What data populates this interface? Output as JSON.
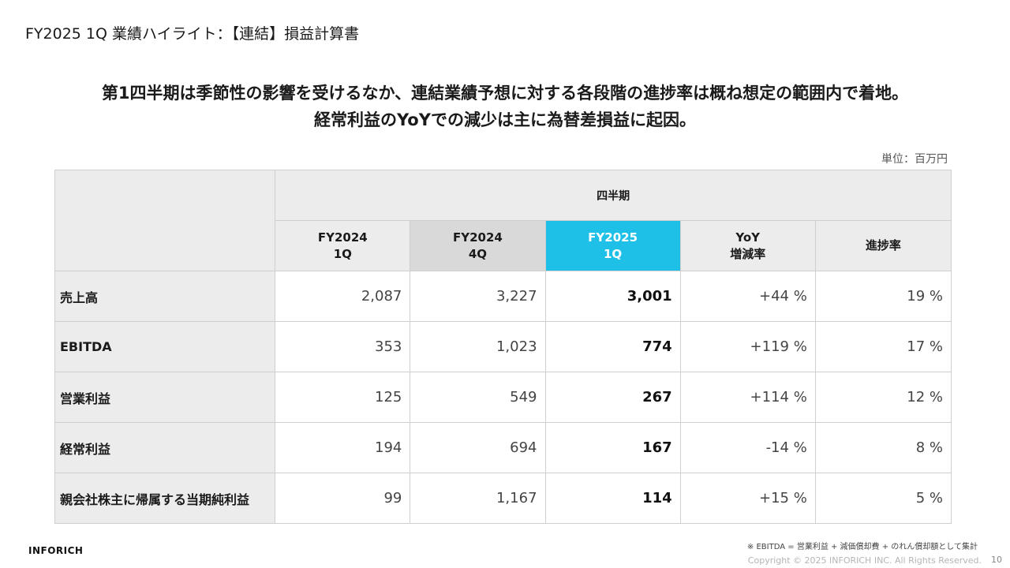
{
  "slide": {
    "title": "FY2025 1Q 業績ハイライト：【連結】損益計算書",
    "headline_line1": "第1四半期は季節性の影響を受けるなか、連結業績予想に対する各段階の進捗率は概ね想定の範囲内で着地。",
    "headline_line2": "経常利益のYoYでの減少は主に為替差損益に起因。",
    "unit": "単位：百万円"
  },
  "table": {
    "group_header": "四半期",
    "columns": [
      {
        "line1": "FY2024",
        "line2": "1Q"
      },
      {
        "line1": "FY2024",
        "line2": "4Q"
      },
      {
        "line1": "FY2025",
        "line2": "1Q"
      },
      {
        "line1": "YoY",
        "line2": "増減率"
      },
      {
        "line1": "進捗率",
        "line2": ""
      }
    ],
    "rows": [
      {
        "label": "売上高",
        "fy2024_1q": "2,087",
        "fy2024_4q": "3,227",
        "fy2025_1q": "3,001",
        "yoy": "+44 %",
        "progress": "19 %"
      },
      {
        "label": "EBITDA",
        "fy2024_1q": "353",
        "fy2024_4q": "1,023",
        "fy2025_1q": "774",
        "yoy": "+119 %",
        "progress": "17 %"
      },
      {
        "label": "営業利益",
        "fy2024_1q": "125",
        "fy2024_4q": "549",
        "fy2025_1q": "267",
        "yoy": "+114 %",
        "progress": "12 %"
      },
      {
        "label": "経常利益",
        "fy2024_1q": "194",
        "fy2024_4q": "694",
        "fy2025_1q": "167",
        "yoy": "-14 %",
        "progress": "8 %"
      },
      {
        "label": "親会社株主に帰属する当期純利益",
        "fy2024_1q": "99",
        "fy2024_4q": "1,167",
        "fy2025_1q": "114",
        "yoy": "+15 %",
        "progress": "5 %"
      }
    ]
  },
  "colors": {
    "accent_header": "#1fc0e8",
    "header_gray": "#ececec",
    "header_dark_gray": "#d9d9d9"
  },
  "footer": {
    "footnote": "※ EBITDA = 営業利益 + 減価償却費 + のれん償却額として集計",
    "logo": "INFORICH",
    "copyright": "Copyright © 2025 INFORICH INC. All Rights Reserved.",
    "page_number": "10"
  }
}
